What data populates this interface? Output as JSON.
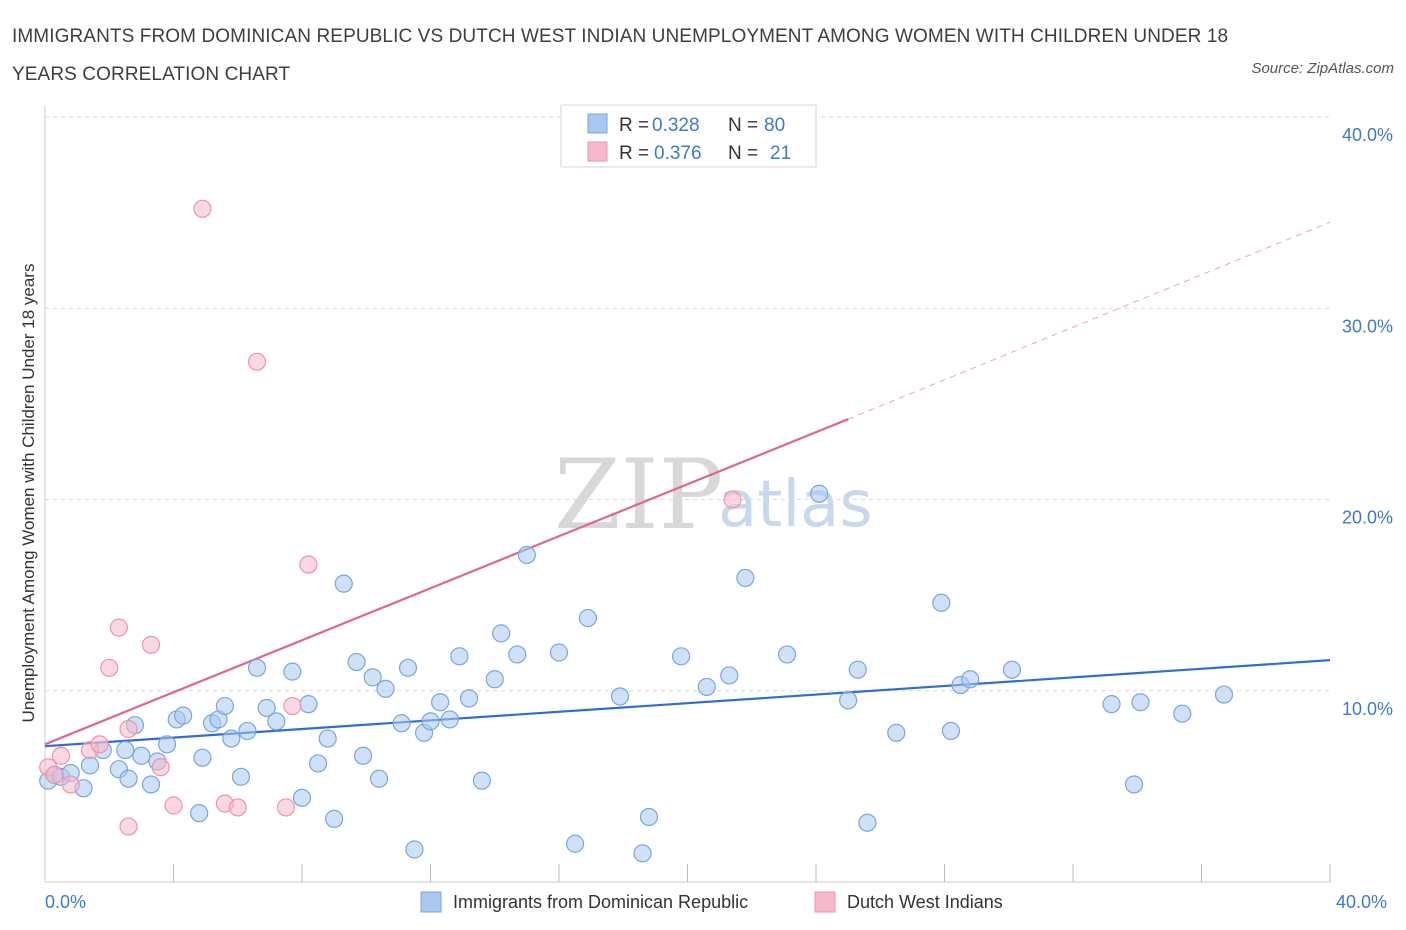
{
  "header": {
    "title": "IMMIGRANTS FROM DOMINICAN REPUBLIC VS DUTCH WEST INDIAN UNEMPLOYMENT AMONG WOMEN WITH CHILDREN UNDER 18 YEARS CORRELATION CHART",
    "source": "Source: ZipAtlas.com"
  },
  "watermark": {
    "zip": "ZIP",
    "atlas": "atlas"
  },
  "legend": {
    "rows": [
      {
        "r_label": "R =",
        "r_value": "0.328",
        "n_label": "N =",
        "n_value": "80"
      },
      {
        "r_label": "R =",
        "r_value": "0.376",
        "n_label": "N =",
        "n_value": "21"
      }
    ]
  },
  "colors": {
    "blue_fill": "#a8c8f0",
    "blue_stroke": "#7aa6dc",
    "blue_line": "#2f6fcc",
    "pink_fill": "#f6b8cb",
    "pink_stroke": "#ee93b0",
    "pink_line": "#e0668f",
    "grid": "#d9d9d9",
    "tick_label": "#3d7bc8"
  },
  "chart_data": {
    "type": "scatter",
    "xlabel": "",
    "ylabel": "Unemployment Among Women with Children Under 18 years",
    "xlim": [
      0,
      40
    ],
    "ylim": [
      0,
      40
    ],
    "x_tick_labels": [
      "0.0%",
      "40.0%"
    ],
    "y_tick_labels": [
      "10.0%",
      "20.0%",
      "30.0%",
      "40.0%"
    ],
    "y_ticks": [
      10,
      20,
      30,
      40
    ],
    "grid": true,
    "legend_position": "bottom-center",
    "series": [
      {
        "name": "Immigrants from Dominican Republic",
        "color": "#a8c8f0",
        "trend": {
          "x": [
            0,
            40
          ],
          "y": [
            7.1,
            11.6
          ],
          "style": "solid"
        },
        "points": [
          [
            0.1,
            5.3
          ],
          [
            0.3,
            5.6
          ],
          [
            0.5,
            5.5
          ],
          [
            0.8,
            5.7
          ],
          [
            1.2,
            4.9
          ],
          [
            1.4,
            6.1
          ],
          [
            1.8,
            6.9
          ],
          [
            2.3,
            5.9
          ],
          [
            2.5,
            6.9
          ],
          [
            2.6,
            5.4
          ],
          [
            2.8,
            8.2
          ],
          [
            3.0,
            6.6
          ],
          [
            3.3,
            5.1
          ],
          [
            3.5,
            6.3
          ],
          [
            3.8,
            7.2
          ],
          [
            4.1,
            8.5
          ],
          [
            4.3,
            8.7
          ],
          [
            4.8,
            3.6
          ],
          [
            4.9,
            6.5
          ],
          [
            5.2,
            8.3
          ],
          [
            5.4,
            8.5
          ],
          [
            5.6,
            9.2
          ],
          [
            5.8,
            7.5
          ],
          [
            6.1,
            5.5
          ],
          [
            6.3,
            7.9
          ],
          [
            6.6,
            11.2
          ],
          [
            6.9,
            9.1
          ],
          [
            7.2,
            8.4
          ],
          [
            7.7,
            11.0
          ],
          [
            8.0,
            4.4
          ],
          [
            8.2,
            9.3
          ],
          [
            8.5,
            6.2
          ],
          [
            8.8,
            7.5
          ],
          [
            9.0,
            3.3
          ],
          [
            9.3,
            15.6
          ],
          [
            9.7,
            11.5
          ],
          [
            9.9,
            6.6
          ],
          [
            10.2,
            10.7
          ],
          [
            10.4,
            5.4
          ],
          [
            10.6,
            10.1
          ],
          [
            11.1,
            8.3
          ],
          [
            11.3,
            11.2
          ],
          [
            11.5,
            1.7
          ],
          [
            11.8,
            7.8
          ],
          [
            12.0,
            8.4
          ],
          [
            12.3,
            9.4
          ],
          [
            12.6,
            8.5
          ],
          [
            12.9,
            11.8
          ],
          [
            13.2,
            9.6
          ],
          [
            13.6,
            5.3
          ],
          [
            14.0,
            10.6
          ],
          [
            14.2,
            13.0
          ],
          [
            14.7,
            11.9
          ],
          [
            15.0,
            17.1
          ],
          [
            16.0,
            12.0
          ],
          [
            16.5,
            2.0
          ],
          [
            16.9,
            13.8
          ],
          [
            17.9,
            9.7
          ],
          [
            18.6,
            1.5
          ],
          [
            18.8,
            3.4
          ],
          [
            19.8,
            11.8
          ],
          [
            20.6,
            10.2
          ],
          [
            21.3,
            10.8
          ],
          [
            21.8,
            15.9
          ],
          [
            23.1,
            11.9
          ],
          [
            24.1,
            20.3
          ],
          [
            25.0,
            9.5
          ],
          [
            25.3,
            11.1
          ],
          [
            25.6,
            3.1
          ],
          [
            26.5,
            7.8
          ],
          [
            27.9,
            14.6
          ],
          [
            28.2,
            7.9
          ],
          [
            28.5,
            10.3
          ],
          [
            28.8,
            10.6
          ],
          [
            30.1,
            11.1
          ],
          [
            33.2,
            9.3
          ],
          [
            33.9,
            5.1
          ],
          [
            34.1,
            9.4
          ],
          [
            35.4,
            8.8
          ],
          [
            36.7,
            9.8
          ]
        ]
      },
      {
        "name": "Dutch West Indians",
        "color": "#f6b8cb",
        "trend": {
          "x": [
            0,
            25
          ],
          "y": [
            7.2,
            24.2
          ],
          "style": "solid",
          "dashed_extension": {
            "x": [
              25,
              40
            ],
            "y": [
              24.2,
              34.5
            ]
          }
        },
        "points": [
          [
            0.1,
            6.0
          ],
          [
            0.5,
            6.6
          ],
          [
            0.8,
            5.1
          ],
          [
            1.4,
            6.9
          ],
          [
            1.7,
            7.2
          ],
          [
            2.0,
            11.2
          ],
          [
            2.3,
            13.3
          ],
          [
            2.6,
            2.9
          ],
          [
            2.6,
            8.0
          ],
          [
            3.3,
            12.4
          ],
          [
            3.6,
            6.0
          ],
          [
            4.0,
            4.0
          ],
          [
            4.9,
            35.2
          ],
          [
            5.6,
            4.1
          ],
          [
            6.0,
            3.9
          ],
          [
            6.6,
            27.2
          ],
          [
            7.5,
            3.9
          ],
          [
            7.7,
            9.2
          ],
          [
            8.2,
            16.6
          ],
          [
            21.4,
            20.0
          ],
          [
            0.3,
            5.6
          ]
        ]
      }
    ]
  }
}
